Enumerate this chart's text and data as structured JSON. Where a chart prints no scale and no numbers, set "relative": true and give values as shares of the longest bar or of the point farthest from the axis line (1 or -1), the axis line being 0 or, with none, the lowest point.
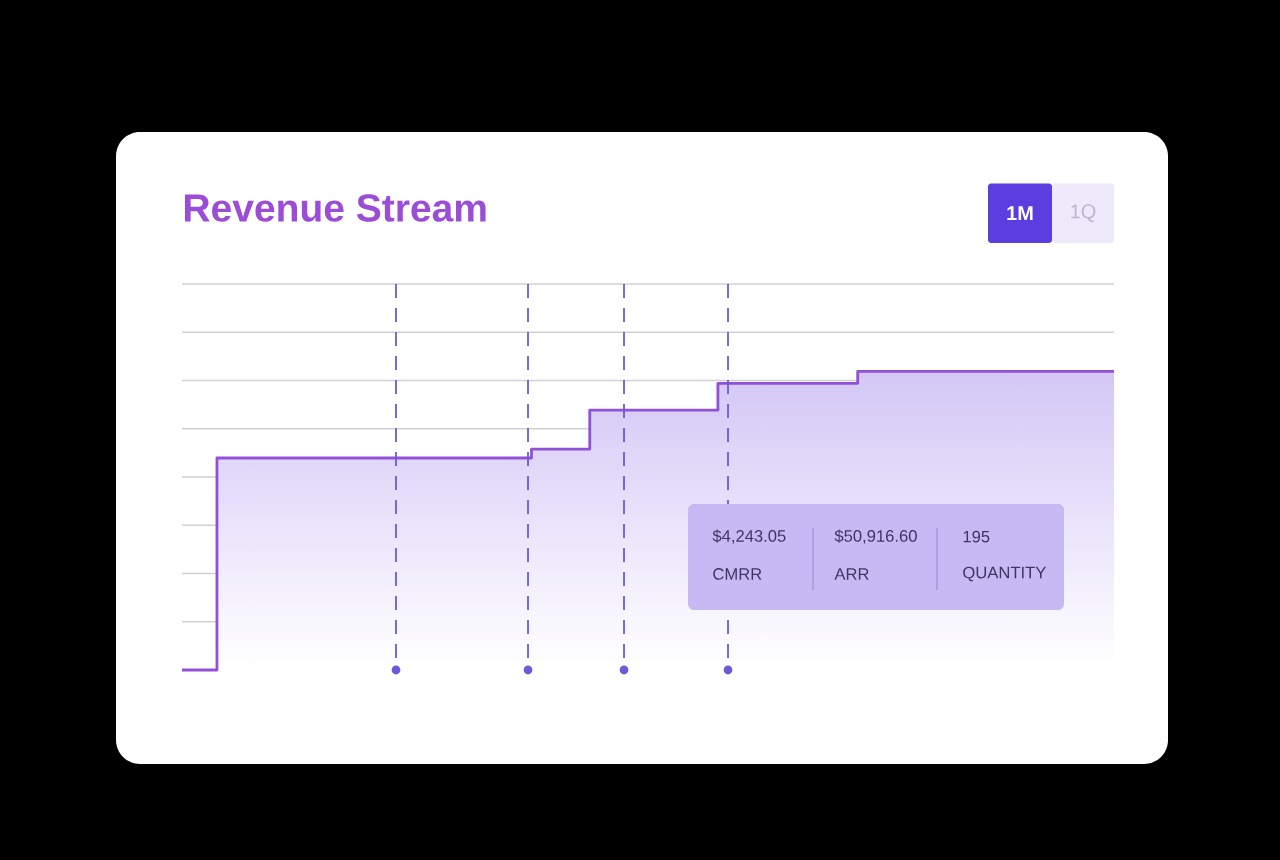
{
  "chart_data": {
    "type": "step",
    "title": "Revenue Stream",
    "annotations": [
      "1M",
      "1Q",
      "$4,243.05",
      "CMRR",
      "$50,916.60",
      "ARR",
      "195",
      "QUANTITY"
    ],
    "categories": [
      null,
      null,
      null,
      null,
      null,
      null,
      null,
      null,
      null,
      null,
      null,
      null,
      null,
      null,
      null,
      null,
      null,
      null,
      null,
      null,
      null,
      null,
      null,
      null,
      null,
      null,
      null,
      null,
      null,
      null,
      null,
      null,
      null,
      null,
      null,
      null,
      null,
      null,
      null,
      null,
      null,
      null,
      null,
      null,
      null,
      null,
      null,
      null,
      null,
      null,
      null,
      null,
      null,
      null,
      null,
      null,
      null,
      null,
      null,
      null,
      null,
      null,
      null,
      null,
      null,
      null,
      null,
      null,
      null,
      null,
      null,
      null,
      null,
      null,
      null,
      null,
      null,
      null,
      null,
      null,
      null
    ],
    "values": [
      0,
      0,
      0,
      0.71,
      0.71,
      0.71,
      0.71,
      0.71,
      0.71,
      0.71,
      0.71,
      0.71,
      0.71,
      0.71,
      0.71,
      0.71,
      0.71,
      0.71,
      0.71,
      0.71,
      0.71,
      0.71,
      0.71,
      0.71,
      0.71,
      0.71,
      0.71,
      0.71,
      0.71,
      0.71,
      0.74,
      0.74,
      0.74,
      0.74,
      0.74,
      0.87,
      0.87,
      0.87,
      0.87,
      0.87,
      0.87,
      0.87,
      0.87,
      0.87,
      0.87,
      0.87,
      0.96,
      0.96,
      0.96,
      0.96,
      0.96,
      0.96,
      0.96,
      0.96,
      0.96,
      0.96,
      0.96,
      0.96,
      1,
      1,
      1,
      1,
      1,
      1,
      1,
      1,
      1,
      1,
      1,
      1,
      1,
      1,
      1,
      1,
      1,
      1,
      1,
      1,
      1,
      1,
      1
    ],
    "color": "#9150d8",
    "relative": true,
    "grid": "y"
  }
}
